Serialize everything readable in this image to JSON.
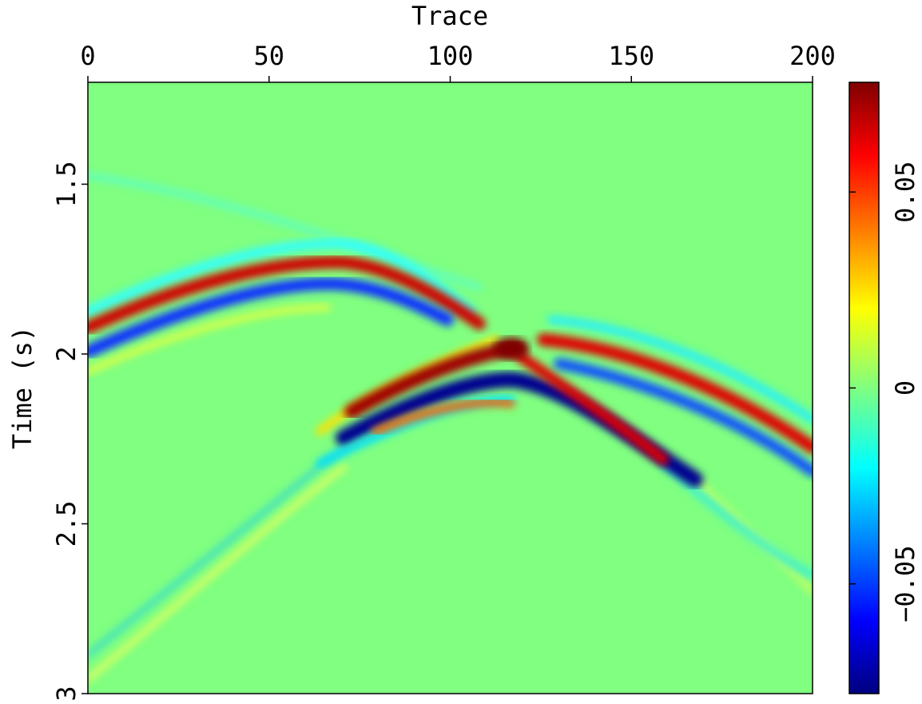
{
  "chart_data": {
    "type": "heatmap",
    "xlabel": "Trace",
    "ylabel": "Time (s)",
    "xlim": [
      0,
      200
    ],
    "xticks": [
      0,
      50,
      100,
      150,
      200
    ],
    "ylim": [
      1.2,
      3
    ],
    "yticks": [
      1.5,
      2,
      2.5,
      3
    ],
    "colorbar": {
      "lim": [
        -0.078,
        0.078
      ],
      "ticks": [
        {
          "value": -0.05,
          "label": "−0.05"
        },
        0,
        0.05
      ]
    }
  }
}
